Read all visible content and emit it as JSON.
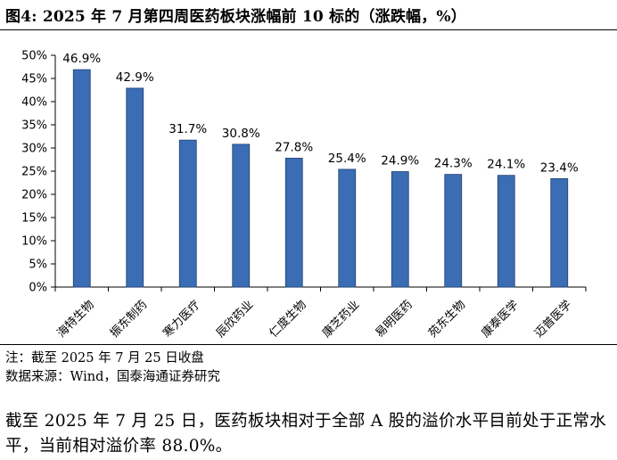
{
  "figure": {
    "title": "图4:  2025 年 7 月第四周医药板块涨幅前 10 标的（涨跌幅，%）"
  },
  "notes": {
    "line1": "注：截至 2025 年 7 月 25 日收盘",
    "line2": "数据来源：Wind，国泰海通证券研究"
  },
  "body": {
    "text": "截至 2025 年 7 月 25 日，医药板块相对于全部 A 股的溢价水平目前处于正常水平，当前相对溢价率 88.0%。"
  },
  "chart_data": {
    "type": "bar",
    "title": "",
    "xlabel": "",
    "ylabel": "",
    "categories": [
      "海特生物",
      "振东制药",
      "寒力医疗",
      "辰欣药业",
      "仁度生物",
      "康芝药业",
      "易明医药",
      "苑东生物",
      "康泰医学",
      "迈普医学"
    ],
    "series": [
      {
        "values": [
          46.9,
          42.9,
          31.7,
          30.8,
          27.8,
          25.4,
          24.9,
          24.3,
          24.1,
          23.4
        ]
      }
    ],
    "data_labels": [
      "46.9%",
      "42.9%",
      "31.7%",
      "30.8%",
      "27.8%",
      "25.4%",
      "24.9%",
      "24.3%",
      "24.1%",
      "23.4%"
    ],
    "ylim": [
      0,
      50
    ],
    "yticks": [
      0,
      5,
      10,
      15,
      20,
      25,
      30,
      35,
      40,
      45,
      50
    ],
    "ytick_labels": [
      "0%",
      "5%",
      "10%",
      "15%",
      "20%",
      "25%",
      "30%",
      "35%",
      "40%",
      "45%",
      "50%"
    ],
    "grid": false,
    "legend": "none",
    "bar_color": "#3A6DB3",
    "bar_edge_color": "#1F3F73"
  }
}
